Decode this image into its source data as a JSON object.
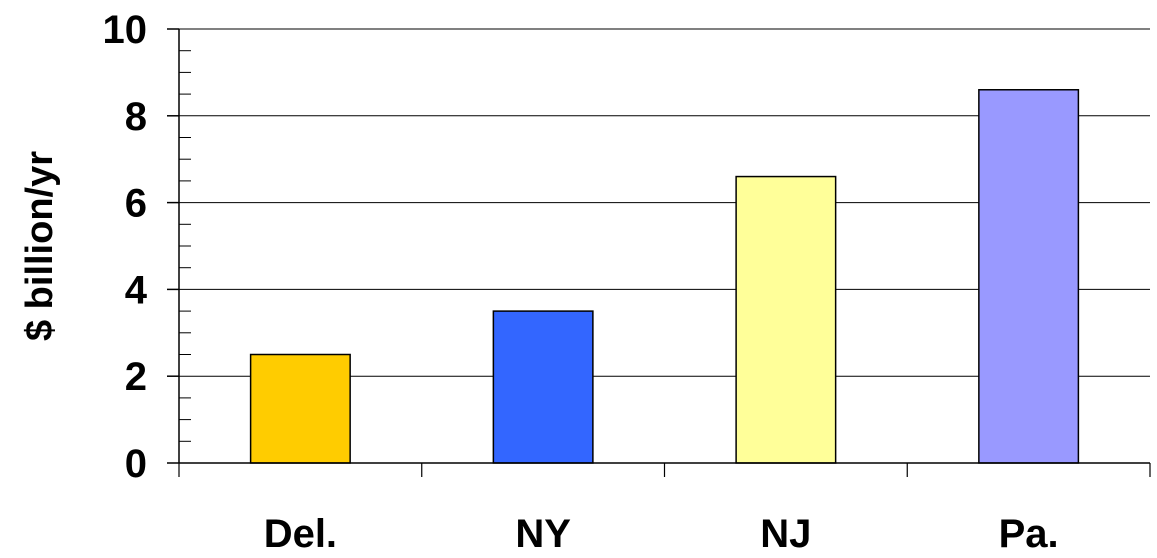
{
  "chart_data": {
    "type": "bar",
    "categories": [
      "Del.",
      "NY",
      "NJ",
      "Pa."
    ],
    "values": [
      2.5,
      3.5,
      6.6,
      8.6
    ],
    "bar_colors": [
      "#FFCC00",
      "#3366FF",
      "#FFFF99",
      "#9999FF"
    ],
    "title": "",
    "xlabel": "",
    "ylabel": "$ billion/yr",
    "ylim": [
      0,
      10
    ],
    "y_major_ticks": [
      "0",
      "2",
      "4",
      "6",
      "8",
      "10"
    ],
    "y_major_step": 2,
    "y_minor_step": 0.5,
    "grid": "horizontal major gridlines",
    "legend": "none"
  }
}
